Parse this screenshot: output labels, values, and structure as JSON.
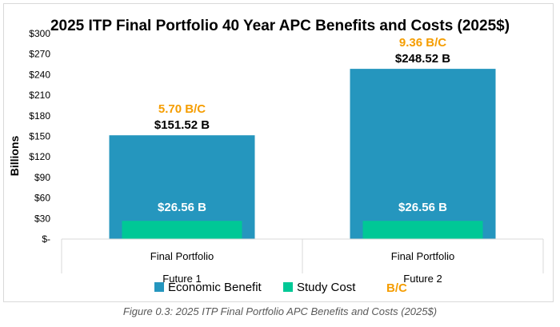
{
  "chart_data": {
    "type": "bar",
    "title": "2025 ITP Final Portfolio 40 Year APC Benefits and Costs (2025$)",
    "ylabel": "Billions",
    "ylim": [
      0,
      300
    ],
    "ytick_values": [
      0,
      30,
      60,
      90,
      120,
      150,
      180,
      210,
      240,
      270,
      300
    ],
    "ytick_labels": [
      "$-",
      "$30",
      "$60",
      "$90",
      "$120",
      "$150",
      "$180",
      "$210",
      "$240",
      "$270",
      "$300"
    ],
    "categories": [
      {
        "name": "Final Portfolio",
        "group": "Future 1"
      },
      {
        "name": "Final Portfolio",
        "group": "Future 2"
      }
    ],
    "series": [
      {
        "name": "Economic Benefit",
        "color": "#2596be",
        "values": [
          151.52,
          248.52
        ],
        "labels": [
          "$151.52 B",
          "$248.52 B"
        ]
      },
      {
        "name": "Study Cost",
        "color": "#00c896",
        "values": [
          26.56,
          26.56
        ],
        "labels": [
          "$26.56 B",
          "$26.56 B"
        ]
      },
      {
        "name": "B/C",
        "color": "#f59d00",
        "values": [
          5.7,
          9.36
        ],
        "labels": [
          "5.70 B/C",
          "9.36 B/C"
        ]
      }
    ],
    "legend_position": "bottom",
    "grid": false
  },
  "caption": "Figure 0.3: 2025 ITP Final Portfolio APC Benefits and Costs (2025$)"
}
